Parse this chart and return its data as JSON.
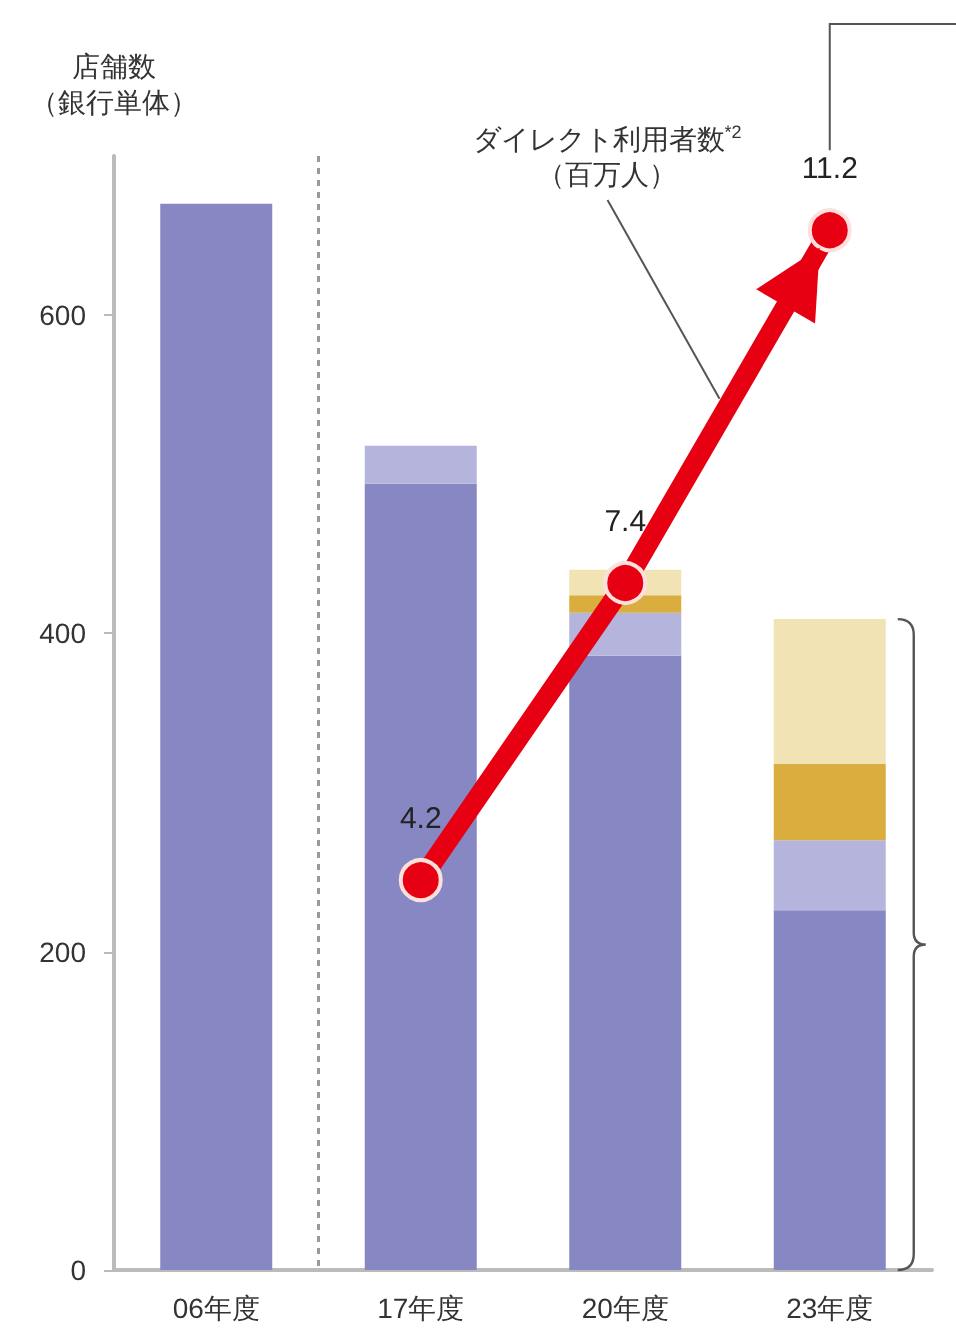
{
  "chart_data": {
    "type": "bar",
    "stacked": true,
    "ylabel": "店舗数（銀行単体）",
    "categories": [
      "06年度",
      "17年度",
      "20年度",
      "23年度"
    ],
    "series": [
      {
        "color": "#8787c4",
        "values": [
          670,
          494,
          386,
          226
        ]
      },
      {
        "color": "#b4b4dd",
        "values": [
          null,
          24,
          27,
          44
        ]
      },
      {
        "color": "#d9ae3e",
        "values": [
          null,
          null,
          11,
          48
        ]
      },
      {
        "color": "#f2e3b5",
        "values": [
          null,
          null,
          16,
          91
        ]
      },
      {
        "type": "line",
        "name": "ダイレクト利用者数$^{*2}$（百万人）",
        "color": "#e60012",
        "axis": "y2",
        "values": [
          null,
          4.2,
          7.4,
          11.2
        ],
        "value_labels": [
          null,
          "4.2",
          "7.4",
          "11.2"
        ]
      }
    ],
    "ylim": [
      0,
      700
    ],
    "yticks": [
      0,
      200,
      400,
      600
    ],
    "y2lim": [
      0,
      12
    ],
    "marker": "circle",
    "grid": false,
    "legend": false
  }
}
